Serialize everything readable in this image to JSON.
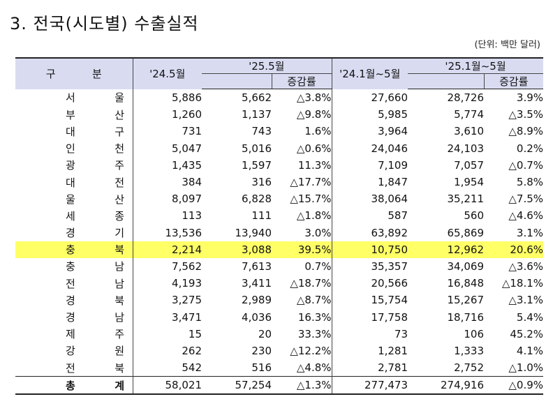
{
  "title": "3. 전국(시도별) 수출실적",
  "unit": "(단위: 백만 달러)",
  "headers": {
    "region": [
      "구",
      "분"
    ],
    "y24_may": "'24.5월",
    "y25_may": "'25.5월",
    "change1": "증감률",
    "y24_ytd": "'24.1월~5월",
    "y25_ytd": "'25.1월~5월",
    "change2": "증감률"
  },
  "rows": [
    {
      "r": [
        "서",
        "울"
      ],
      "a": "5,886",
      "b": "5,662",
      "c": "△3.8%",
      "d": "27,660",
      "e": "28,726",
      "f": "3.9%"
    },
    {
      "r": [
        "부",
        "산"
      ],
      "a": "1,260",
      "b": "1,137",
      "c": "△9.8%",
      "d": "5,985",
      "e": "5,774",
      "f": "△3.5%"
    },
    {
      "r": [
        "대",
        "구"
      ],
      "a": "731",
      "b": "743",
      "c": "1.6%",
      "d": "3,964",
      "e": "3,610",
      "f": "△8.9%"
    },
    {
      "r": [
        "인",
        "천"
      ],
      "a": "5,047",
      "b": "5,016",
      "c": "△0.6%",
      "d": "24,046",
      "e": "24,103",
      "f": "0.2%"
    },
    {
      "r": [
        "광",
        "주"
      ],
      "a": "1,435",
      "b": "1,597",
      "c": "11.3%",
      "d": "7,109",
      "e": "7,057",
      "f": "△0.7%"
    },
    {
      "r": [
        "대",
        "전"
      ],
      "a": "384",
      "b": "316",
      "c": "△17.7%",
      "d": "1,847",
      "e": "1,954",
      "f": "5.8%"
    },
    {
      "r": [
        "울",
        "산"
      ],
      "a": "8,097",
      "b": "6,828",
      "c": "△15.7%",
      "d": "38,064",
      "e": "35,211",
      "f": "△7.5%"
    },
    {
      "r": [
        "세",
        "종"
      ],
      "a": "113",
      "b": "111",
      "c": "△1.8%",
      "d": "587",
      "e": "560",
      "f": "△4.6%"
    },
    {
      "r": [
        "경",
        "기"
      ],
      "a": "13,536",
      "b": "13,940",
      "c": "3.0%",
      "d": "63,892",
      "e": "65,869",
      "f": "3.1%"
    },
    {
      "r": [
        "충",
        "북"
      ],
      "a": "2,214",
      "b": "3,088",
      "c": "39.5%",
      "d": "10,750",
      "e": "12,962",
      "f": "20.6%"
    },
    {
      "r": [
        "충",
        "남"
      ],
      "a": "7,562",
      "b": "7,613",
      "c": "0.7%",
      "d": "35,357",
      "e": "34,069",
      "f": "△3.6%"
    },
    {
      "r": [
        "전",
        "남"
      ],
      "a": "4,193",
      "b": "3,411",
      "c": "△18.7%",
      "d": "20,566",
      "e": "16,848",
      "f": "△18.1%"
    },
    {
      "r": [
        "경",
        "북"
      ],
      "a": "3,275",
      "b": "2,989",
      "c": "△8.7%",
      "d": "15,754",
      "e": "15,267",
      "f": "△3.1%"
    },
    {
      "r": [
        "경",
        "남"
      ],
      "a": "3,471",
      "b": "4,036",
      "c": "16.3%",
      "d": "17,758",
      "e": "18,716",
      "f": "5.4%"
    },
    {
      "r": [
        "제",
        "주"
      ],
      "a": "15",
      "b": "20",
      "c": "33.3%",
      "d": "73",
      "e": "106",
      "f": "45.2%"
    },
    {
      "r": [
        "강",
        "원"
      ],
      "a": "262",
      "b": "230",
      "c": "△12.2%",
      "d": "1,281",
      "e": "1,333",
      "f": "4.1%"
    },
    {
      "r": [
        "전",
        "북"
      ],
      "a": "542",
      "b": "516",
      "c": "△4.8%",
      "d": "2,781",
      "e": "2,752",
      "f": "△1.0%"
    }
  ],
  "total": {
    "r": [
      "총",
      "계"
    ],
    "a": "58,021",
    "b": "57,254",
    "c": "△1.3%",
    "d": "277,473",
    "e": "274,916",
    "f": "△0.9%"
  },
  "highlight_color": "#ffff66",
  "header_bg": "#d9dcf1"
}
